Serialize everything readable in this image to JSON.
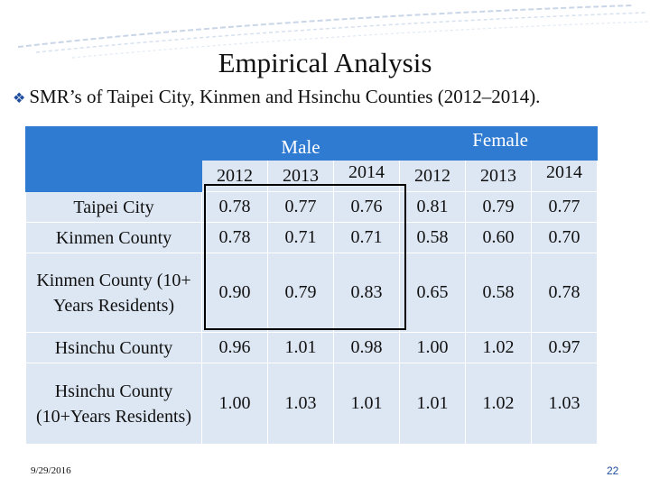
{
  "slide": {
    "title": "Empirical Analysis",
    "subtitle_icon": "bullet-icon",
    "subtitle": "SMR’s of Taipei City, Kinmen and Hsinchu Counties (2012–2014).",
    "date": "9/29/2016",
    "page_number": "22"
  },
  "table": {
    "header": {
      "male": "Male",
      "female": "Female"
    },
    "years": [
      "2012",
      "2013",
      "2014",
      "2012",
      "2013",
      "2014"
    ],
    "rows": [
      {
        "label": "Taipei City",
        "values": [
          "0.78",
          "0.77",
          "0.76",
          "0.81",
          "0.79",
          "0.77"
        ]
      },
      {
        "label": "Kinmen County",
        "values": [
          "0.78",
          "0.71",
          "0.71",
          "0.58",
          "0.60",
          "0.70"
        ]
      },
      {
        "label": "Kinmen County (10+ Years Residents)",
        "values": [
          "0.90",
          "0.79",
          "0.83",
          "0.65",
          "0.58",
          "0.78"
        ]
      },
      {
        "label": "Hsinchu County",
        "values": [
          "0.96",
          "1.01",
          "0.98",
          "1.00",
          "1.02",
          "0.97"
        ]
      },
      {
        "label": "Hsinchu County (10+Years Residents)",
        "values": [
          "1.00",
          "1.03",
          "1.01",
          "1.01",
          "1.02",
          "1.03"
        ]
      }
    ]
  },
  "colors": {
    "header_blue": "#2f7bd1",
    "cell_fill": "#dde7f3",
    "bullet": "#1f4e9e"
  }
}
